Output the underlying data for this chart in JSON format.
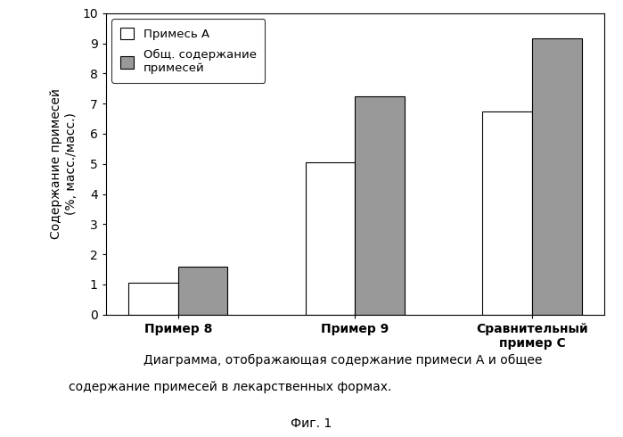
{
  "categories": [
    "Пример 8",
    "Пример 9",
    "Сравнительный\nпример С"
  ],
  "impurity_a": [
    1.05,
    5.05,
    6.75
  ],
  "total_impurity": [
    1.6,
    7.25,
    9.15
  ],
  "bar_color_a": "#ffffff",
  "bar_color_total": "#999999",
  "bar_edgecolor": "#000000",
  "ylabel": "Содержание примесей\n(%, масс./масс.)",
  "ylim": [
    0,
    10
  ],
  "yticks": [
    0,
    1,
    2,
    3,
    4,
    5,
    6,
    7,
    8,
    9,
    10
  ],
  "legend_label_a": "Примесь А",
  "legend_label_total": "Общ. содержание\nпримесей",
  "caption_line1": "Диаграмма, отображающая содержание примеси А и общее",
  "caption_line2": "содержание примесей в лекарственных формах.",
  "figure_label": "Фиг. 1",
  "bg_color": "#ffffff",
  "plot_bg_color": "#ffffff"
}
